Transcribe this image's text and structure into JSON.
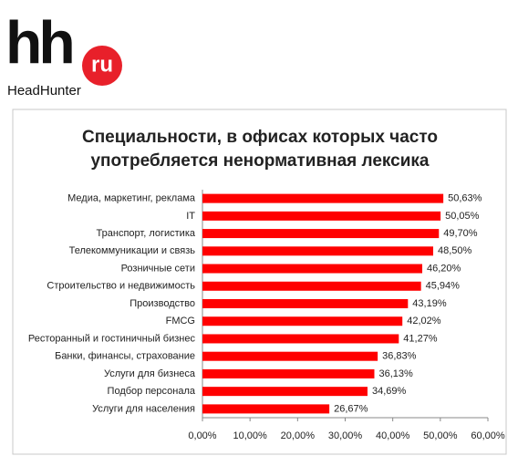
{
  "logo": {
    "mark": "hh",
    "badge": "ru",
    "name": "HeadHunter"
  },
  "chart_data": {
    "type": "barh",
    "title": "Специальности, в офисах которых часто употребляется ненормативная лексика",
    "categories": [
      "Медиа, маркетинг, реклама",
      "IT",
      "Транспорт, логистика",
      "Телекоммуникации и связь",
      "Розничные сети",
      "Строительство и недвижимость",
      "Производство",
      "FMCG",
      "Ресторанный и гостиничный бизнес",
      "Банки, финансы, страхование",
      "Услуги для бизнеса",
      "Подбор персонала",
      "Услуги для населения"
    ],
    "values": [
      50.63,
      50.05,
      49.7,
      48.5,
      46.2,
      45.94,
      43.19,
      42.02,
      41.27,
      36.83,
      36.13,
      34.69,
      26.67
    ],
    "value_labels": [
      "50,63%",
      "50,05%",
      "49,70%",
      "48,50%",
      "46,20%",
      "45,94%",
      "43,19%",
      "42,02%",
      "41,27%",
      "36,83%",
      "36,13%",
      "34,69%",
      "26,67%"
    ],
    "color": "#ff0000",
    "xlim": [
      0,
      60
    ],
    "xticks": [
      {
        "value": 0,
        "label": "0,00%"
      },
      {
        "value": 10,
        "label": "10,00%"
      },
      {
        "value": 20,
        "label": "20,00%"
      },
      {
        "value": 30,
        "label": "30,00%"
      },
      {
        "value": 40,
        "label": "40,00%"
      },
      {
        "value": 50,
        "label": "50,00%"
      },
      {
        "value": 60,
        "label": "60,00%"
      }
    ]
  }
}
